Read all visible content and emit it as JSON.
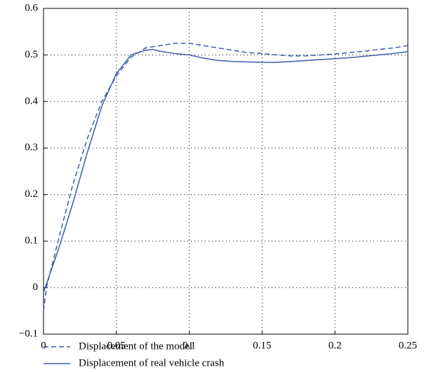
{
  "chart_data": {
    "type": "line",
    "xlim": [
      0,
      0.25
    ],
    "xticks": [
      0,
      0.05,
      0.1,
      0.15,
      0.2,
      0.25
    ],
    "ylim": [
      -0.1,
      0.6
    ],
    "yticks": [
      {
        "value": -0.1,
        "label": "−0.1"
      },
      0,
      0.1,
      0.2,
      0.3,
      0.4,
      0.5,
      0.6
    ],
    "grid": true,
    "legend": "bottom",
    "series": [
      {
        "name": "Displacement of the model",
        "color": "#3d5ba9",
        "style": "dashed",
        "x": [
          0,
          0.002,
          0.01,
          0.02,
          0.03,
          0.04,
          0.05,
          0.06,
          0.07,
          0.08,
          0.09,
          0.1,
          0.11,
          0.12,
          0.13,
          0.14,
          0.15,
          0.16,
          0.17,
          0.18,
          0.19,
          0.2,
          0.21,
          0.22,
          0.23,
          0.24,
          0.25
        ],
        "values": [
          -0.05,
          0,
          0.1,
          0.22,
          0.32,
          0.4,
          0.455,
          0.495,
          0.515,
          0.52,
          0.525,
          0.525,
          0.52,
          0.515,
          0.51,
          0.505,
          0.503,
          0.5,
          0.498,
          0.498,
          0.5,
          0.502,
          0.505,
          0.508,
          0.512,
          0.515,
          0.52
        ]
      },
      {
        "name": "Displacement of real vehicle crash",
        "color": "#3d5ba9",
        "style": "solid",
        "x": [
          0,
          0.01,
          0.02,
          0.03,
          0.04,
          0.05,
          0.06,
          0.07,
          0.075,
          0.08,
          0.09,
          0.1,
          0.11,
          0.12,
          0.13,
          0.14,
          0.15,
          0.16,
          0.17,
          0.18,
          0.19,
          0.2,
          0.21,
          0.22,
          0.23,
          0.24,
          0.25
        ],
        "values": [
          -0.01,
          0.08,
          0.18,
          0.29,
          0.39,
          0.46,
          0.5,
          0.51,
          0.512,
          0.508,
          0.503,
          0.5,
          0.493,
          0.488,
          0.486,
          0.485,
          0.484,
          0.484,
          0.486,
          0.488,
          0.49,
          0.492,
          0.494,
          0.497,
          0.5,
          0.503,
          0.507
        ]
      }
    ]
  }
}
